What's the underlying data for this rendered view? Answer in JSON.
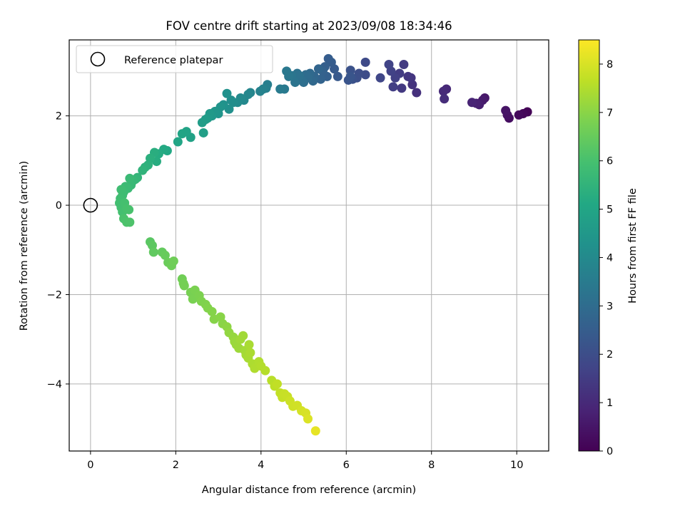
{
  "chart_data": {
    "type": "scatter",
    "title": "FOV centre drift starting at 2023/09/08 18:34:46",
    "xlabel": "Angular distance from reference (arcmin)",
    "ylabel": "Rotation from reference (arcmin)",
    "xlim": [
      -0.5,
      10.75
    ],
    "ylim": [
      -5.5,
      3.7
    ],
    "xticks": [
      0,
      2,
      4,
      6,
      8,
      10
    ],
    "xtick_labels": [
      "0",
      "2",
      "4",
      "6",
      "8",
      "10"
    ],
    "yticks": [
      -4,
      -2,
      0,
      2
    ],
    "ytick_labels": [
      "−4",
      "−2",
      "0",
      "2"
    ],
    "grid": true,
    "legend": {
      "placement": "top-left",
      "entries": [
        {
          "label": "Reference platepar",
          "marker": "open-circle"
        }
      ]
    },
    "reference_point": {
      "x": 0,
      "y": 0
    },
    "colorbar": {
      "label": "Hours from first FF file",
      "colormap": "viridis",
      "range": [
        0,
        8.5
      ],
      "ticks": [
        0,
        1,
        2,
        3,
        4,
        5,
        6,
        7,
        8
      ],
      "tick_labels": [
        "0",
        "1",
        "2",
        "3",
        "4",
        "5",
        "6",
        "7",
        "8"
      ]
    },
    "series": [
      {
        "fields": [
          "x",
          "y",
          "hours"
        ],
        "points": [
          [
            10.25,
            2.09,
            0.05
          ],
          [
            10.15,
            2.05,
            0.12
          ],
          [
            10.05,
            2.02,
            0.2
          ],
          [
            9.82,
            1.95,
            0.3
          ],
          [
            9.78,
            2.02,
            0.38
          ],
          [
            9.74,
            2.12,
            0.45
          ],
          [
            9.25,
            2.4,
            0.55
          ],
          [
            9.2,
            2.35,
            0.62
          ],
          [
            9.12,
            2.25,
            0.7
          ],
          [
            9.05,
            2.28,
            0.78
          ],
          [
            8.95,
            2.3,
            0.85
          ],
          [
            8.35,
            2.6,
            0.95
          ],
          [
            8.28,
            2.55,
            1.02
          ],
          [
            8.3,
            2.38,
            1.08
          ],
          [
            7.65,
            2.52,
            1.18
          ],
          [
            7.55,
            2.7,
            1.25
          ],
          [
            7.52,
            2.85,
            1.3
          ],
          [
            7.45,
            2.88,
            1.35
          ],
          [
            7.3,
            2.62,
            1.42
          ],
          [
            7.35,
            3.15,
            1.45
          ],
          [
            7.25,
            2.95,
            1.5
          ],
          [
            7.1,
            2.65,
            1.55
          ],
          [
            7.15,
            2.85,
            1.6
          ],
          [
            7.05,
            3.0,
            1.65
          ],
          [
            7.0,
            3.15,
            1.7
          ],
          [
            6.8,
            2.85,
            1.8
          ],
          [
            6.45,
            3.2,
            1.9
          ],
          [
            6.45,
            2.92,
            1.95
          ],
          [
            6.3,
            2.95,
            2.0
          ],
          [
            6.25,
            2.85,
            2.05
          ],
          [
            6.15,
            2.82,
            2.1
          ],
          [
            6.1,
            3.02,
            2.15
          ],
          [
            6.05,
            2.8,
            2.2
          ],
          [
            6.1,
            2.88,
            2.25
          ],
          [
            5.8,
            2.88,
            2.35
          ],
          [
            5.72,
            3.05,
            2.4
          ],
          [
            5.65,
            3.2,
            2.45
          ],
          [
            5.58,
            3.28,
            2.5
          ],
          [
            5.5,
            3.1,
            2.55
          ],
          [
            5.55,
            2.88,
            2.6
          ],
          [
            5.45,
            3.0,
            2.65
          ],
          [
            5.4,
            2.82,
            2.7
          ],
          [
            5.35,
            3.05,
            2.75
          ],
          [
            5.25,
            2.88,
            2.8
          ],
          [
            5.22,
            2.78,
            2.85
          ],
          [
            5.15,
            2.95,
            2.9
          ],
          [
            5.1,
            2.85,
            2.95
          ],
          [
            5.05,
            2.92,
            3.0
          ],
          [
            5.0,
            2.75,
            3.05
          ],
          [
            4.95,
            2.8,
            3.1
          ],
          [
            4.9,
            2.9,
            3.15
          ],
          [
            4.85,
            2.95,
            3.2
          ],
          [
            4.8,
            2.75,
            3.25
          ],
          [
            4.72,
            2.9,
            3.3
          ],
          [
            4.65,
            2.88,
            3.35
          ],
          [
            4.6,
            3.0,
            3.4
          ],
          [
            4.55,
            2.6,
            3.45
          ],
          [
            4.45,
            2.6,
            3.5
          ],
          [
            4.15,
            2.7,
            3.6
          ],
          [
            4.12,
            2.62,
            3.65
          ],
          [
            4.05,
            2.6,
            3.7
          ],
          [
            3.98,
            2.55,
            3.75
          ],
          [
            3.75,
            2.52,
            3.85
          ],
          [
            3.7,
            2.48,
            3.9
          ],
          [
            3.6,
            2.35,
            3.95
          ],
          [
            3.52,
            2.4,
            4.0
          ],
          [
            3.45,
            2.3,
            4.05
          ],
          [
            3.35,
            2.3,
            4.1
          ],
          [
            3.3,
            2.35,
            4.15
          ],
          [
            3.25,
            2.15,
            4.2
          ],
          [
            3.2,
            2.5,
            4.25
          ],
          [
            3.12,
            2.25,
            4.3
          ],
          [
            3.05,
            2.2,
            4.35
          ],
          [
            3.0,
            2.05,
            4.4
          ],
          [
            2.92,
            2.1,
            4.45
          ],
          [
            2.85,
            2.0,
            4.5
          ],
          [
            2.8,
            2.05,
            4.55
          ],
          [
            2.75,
            1.95,
            4.6
          ],
          [
            2.7,
            1.92,
            4.65
          ],
          [
            2.62,
            1.85,
            4.7
          ],
          [
            2.65,
            1.62,
            4.75
          ],
          [
            2.35,
            1.52,
            4.85
          ],
          [
            2.25,
            1.65,
            4.9
          ],
          [
            2.15,
            1.6,
            4.95
          ],
          [
            2.05,
            1.42,
            5.0
          ],
          [
            1.8,
            1.22,
            5.1
          ],
          [
            1.72,
            1.25,
            5.15
          ],
          [
            1.6,
            1.15,
            5.2
          ],
          [
            1.55,
            0.98,
            5.25
          ],
          [
            1.5,
            1.18,
            5.3
          ],
          [
            1.4,
            1.05,
            5.35
          ],
          [
            1.35,
            0.9,
            5.4
          ],
          [
            1.28,
            0.85,
            5.45
          ],
          [
            1.22,
            0.78,
            5.5
          ],
          [
            1.1,
            0.62,
            5.55
          ],
          [
            1.05,
            0.58,
            5.6
          ],
          [
            1.0,
            0.55,
            5.65
          ],
          [
            0.95,
            0.45,
            5.7
          ],
          [
            0.92,
            0.6,
            5.72
          ],
          [
            0.88,
            0.38,
            5.75
          ],
          [
            0.82,
            0.42,
            5.78
          ],
          [
            0.78,
            0.3,
            5.8
          ],
          [
            0.75,
            0.22,
            5.83
          ],
          [
            0.72,
            0.35,
            5.85
          ],
          [
            0.7,
            0.15,
            5.88
          ],
          [
            0.68,
            0.05,
            5.9
          ],
          [
            0.72,
            -0.05,
            5.92
          ],
          [
            0.75,
            -0.15,
            5.95
          ],
          [
            0.8,
            0.05,
            5.97
          ],
          [
            0.85,
            -0.08,
            6.0
          ],
          [
            0.9,
            -0.1,
            6.02
          ],
          [
            0.78,
            -0.3,
            6.05
          ],
          [
            0.85,
            -0.38,
            6.08
          ],
          [
            0.92,
            -0.38,
            6.1
          ],
          [
            1.4,
            -0.82,
            6.3
          ],
          [
            1.45,
            -0.9,
            6.35
          ],
          [
            1.48,
            -1.05,
            6.4
          ],
          [
            1.68,
            -1.05,
            6.45
          ],
          [
            1.75,
            -1.12,
            6.5
          ],
          [
            1.82,
            -1.28,
            6.55
          ],
          [
            1.9,
            -1.35,
            6.6
          ],
          [
            1.95,
            -1.25,
            6.62
          ],
          [
            2.15,
            -1.65,
            6.65
          ],
          [
            2.18,
            -1.75,
            6.7
          ],
          [
            2.2,
            -1.8,
            6.72
          ],
          [
            2.35,
            -1.95,
            6.75
          ],
          [
            2.4,
            -2.1,
            6.78
          ],
          [
            2.45,
            -1.9,
            6.8
          ],
          [
            2.55,
            -2.02,
            6.82
          ],
          [
            2.6,
            -2.15,
            6.85
          ],
          [
            2.7,
            -2.22,
            6.88
          ],
          [
            2.75,
            -2.3,
            6.9
          ],
          [
            2.85,
            -2.38,
            6.93
          ],
          [
            2.9,
            -2.55,
            6.95
          ],
          [
            3.05,
            -2.5,
            6.98
          ],
          [
            3.1,
            -2.65,
            7.0
          ],
          [
            3.2,
            -2.72,
            7.05
          ],
          [
            3.25,
            -2.85,
            7.1
          ],
          [
            3.35,
            -2.95,
            7.15
          ],
          [
            3.38,
            -3.05,
            7.2
          ],
          [
            3.42,
            -3.12,
            7.22
          ],
          [
            3.48,
            -3.2,
            7.25
          ],
          [
            3.52,
            -3.0,
            7.28
          ],
          [
            3.58,
            -2.92,
            7.3
          ],
          [
            3.62,
            -3.25,
            7.32
          ],
          [
            3.65,
            -3.35,
            7.35
          ],
          [
            3.7,
            -3.42,
            7.38
          ],
          [
            3.72,
            -3.12,
            7.4
          ],
          [
            3.75,
            -3.3,
            7.42
          ],
          [
            3.8,
            -3.55,
            7.45
          ],
          [
            3.85,
            -3.65,
            7.48
          ],
          [
            3.95,
            -3.5,
            7.5
          ],
          [
            4.0,
            -3.6,
            7.52
          ],
          [
            4.1,
            -3.7,
            7.55
          ],
          [
            4.25,
            -3.92,
            7.6
          ],
          [
            4.32,
            -4.05,
            7.65
          ],
          [
            4.38,
            -4.0,
            7.7
          ],
          [
            4.45,
            -4.2,
            7.72
          ],
          [
            4.5,
            -4.3,
            7.75
          ],
          [
            4.55,
            -4.22,
            7.78
          ],
          [
            4.62,
            -4.28,
            7.8
          ],
          [
            4.68,
            -4.38,
            7.85
          ],
          [
            4.75,
            -4.5,
            7.88
          ],
          [
            4.85,
            -4.48,
            7.9
          ],
          [
            4.95,
            -4.6,
            7.95
          ],
          [
            5.05,
            -4.65,
            8.0
          ],
          [
            5.1,
            -4.78,
            8.05
          ],
          [
            5.28,
            -5.05,
            8.2
          ]
        ]
      }
    ]
  }
}
